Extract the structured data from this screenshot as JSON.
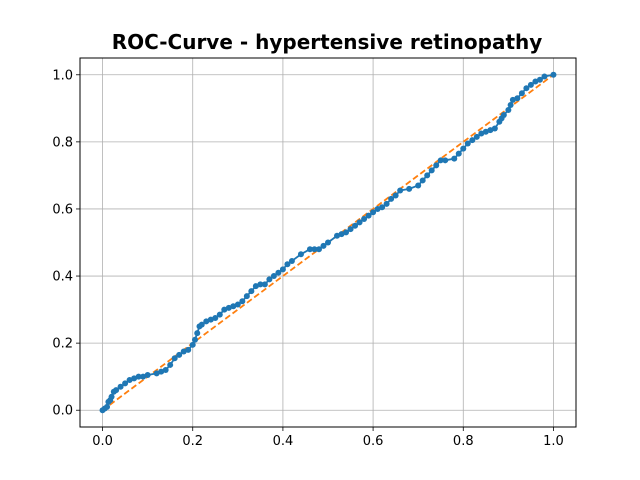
{
  "chart_data": {
    "type": "line",
    "title": "ROC-Curve - hypertensive retinopathy",
    "xlabel": "",
    "ylabel": "",
    "xlim": [
      -0.05,
      1.05
    ],
    "ylim": [
      -0.05,
      1.05
    ],
    "xticks": [
      "0.0",
      "0.2",
      "0.4",
      "0.6",
      "0.8",
      "1.0"
    ],
    "yticks": [
      "0.0",
      "0.2",
      "0.4",
      "0.6",
      "0.8",
      "1.0"
    ],
    "grid": true,
    "colors": {
      "roc": "#1f77b4",
      "diagonal": "#ff7f0e",
      "grid": "#b0b0b0"
    },
    "series": [
      {
        "style": "line-with-markers",
        "x": [
          0.0,
          0.005,
          0.01,
          0.013,
          0.017,
          0.02,
          0.025,
          0.03,
          0.04,
          0.05,
          0.06,
          0.07,
          0.08,
          0.09,
          0.1,
          0.12,
          0.13,
          0.14,
          0.15,
          0.16,
          0.17,
          0.18,
          0.19,
          0.2,
          0.205,
          0.21,
          0.215,
          0.22,
          0.23,
          0.24,
          0.25,
          0.26,
          0.27,
          0.28,
          0.29,
          0.3,
          0.31,
          0.32,
          0.33,
          0.34,
          0.35,
          0.36,
          0.37,
          0.38,
          0.39,
          0.4,
          0.41,
          0.42,
          0.44,
          0.46,
          0.47,
          0.48,
          0.49,
          0.5,
          0.52,
          0.53,
          0.54,
          0.55,
          0.56,
          0.57,
          0.58,
          0.59,
          0.6,
          0.61,
          0.62,
          0.63,
          0.64,
          0.65,
          0.66,
          0.68,
          0.7,
          0.71,
          0.72,
          0.73,
          0.74,
          0.75,
          0.76,
          0.78,
          0.79,
          0.8,
          0.81,
          0.82,
          0.83,
          0.84,
          0.85,
          0.86,
          0.87,
          0.88,
          0.885,
          0.89,
          0.9,
          0.905,
          0.91,
          0.92,
          0.93,
          0.94,
          0.95,
          0.96,
          0.97,
          0.98,
          1.0
        ],
        "y": [
          0.0,
          0.005,
          0.01,
          0.025,
          0.03,
          0.04,
          0.055,
          0.06,
          0.07,
          0.08,
          0.09,
          0.095,
          0.1,
          0.1,
          0.105,
          0.11,
          0.115,
          0.12,
          0.135,
          0.155,
          0.165,
          0.175,
          0.18,
          0.195,
          0.21,
          0.23,
          0.25,
          0.255,
          0.265,
          0.27,
          0.275,
          0.285,
          0.3,
          0.305,
          0.31,
          0.315,
          0.325,
          0.34,
          0.355,
          0.37,
          0.375,
          0.375,
          0.39,
          0.4,
          0.41,
          0.42,
          0.435,
          0.445,
          0.465,
          0.48,
          0.48,
          0.48,
          0.49,
          0.5,
          0.52,
          0.525,
          0.53,
          0.54,
          0.55,
          0.56,
          0.57,
          0.58,
          0.59,
          0.6,
          0.605,
          0.615,
          0.63,
          0.64,
          0.655,
          0.66,
          0.67,
          0.685,
          0.7,
          0.715,
          0.73,
          0.745,
          0.745,
          0.75,
          0.765,
          0.78,
          0.795,
          0.805,
          0.815,
          0.825,
          0.83,
          0.835,
          0.84,
          0.86,
          0.87,
          0.88,
          0.895,
          0.91,
          0.925,
          0.93,
          0.945,
          0.96,
          0.97,
          0.98,
          0.985,
          0.995,
          1.0
        ]
      },
      {
        "style": "dashed",
        "x": [
          0.0,
          1.0
        ],
        "y": [
          0.0,
          1.0
        ]
      }
    ]
  }
}
